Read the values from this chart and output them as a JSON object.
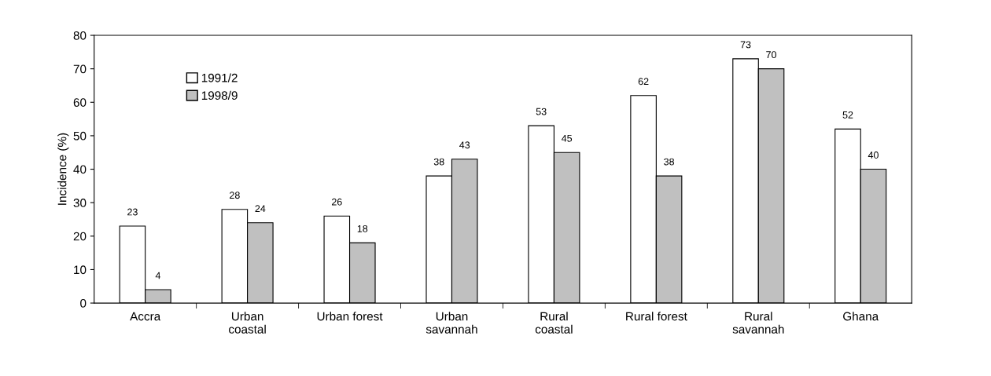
{
  "chart_data": {
    "type": "bar",
    "ylabel": "Incidence (%)",
    "categories": [
      "Accra",
      "Urban\ncoastal",
      "Urban forest",
      "Urban\nsavannah",
      "Rural\ncoastal",
      "Rural forest",
      "Rural\nsavannah",
      "Ghana"
    ],
    "series": [
      {
        "name": "1991/2",
        "color": "#ffffff",
        "values": [
          23,
          28,
          26,
          38,
          53,
          62,
          73,
          52
        ]
      },
      {
        "name": "1998/9",
        "color": "#c0c0c0",
        "values": [
          4,
          24,
          18,
          43,
          45,
          38,
          70,
          40
        ]
      }
    ],
    "ylim": [
      0,
      80
    ],
    "yticks": [
      0,
      10,
      20,
      30,
      40,
      50,
      60,
      70,
      80
    ],
    "data_labels": true,
    "grid": false,
    "legend": "top left"
  }
}
